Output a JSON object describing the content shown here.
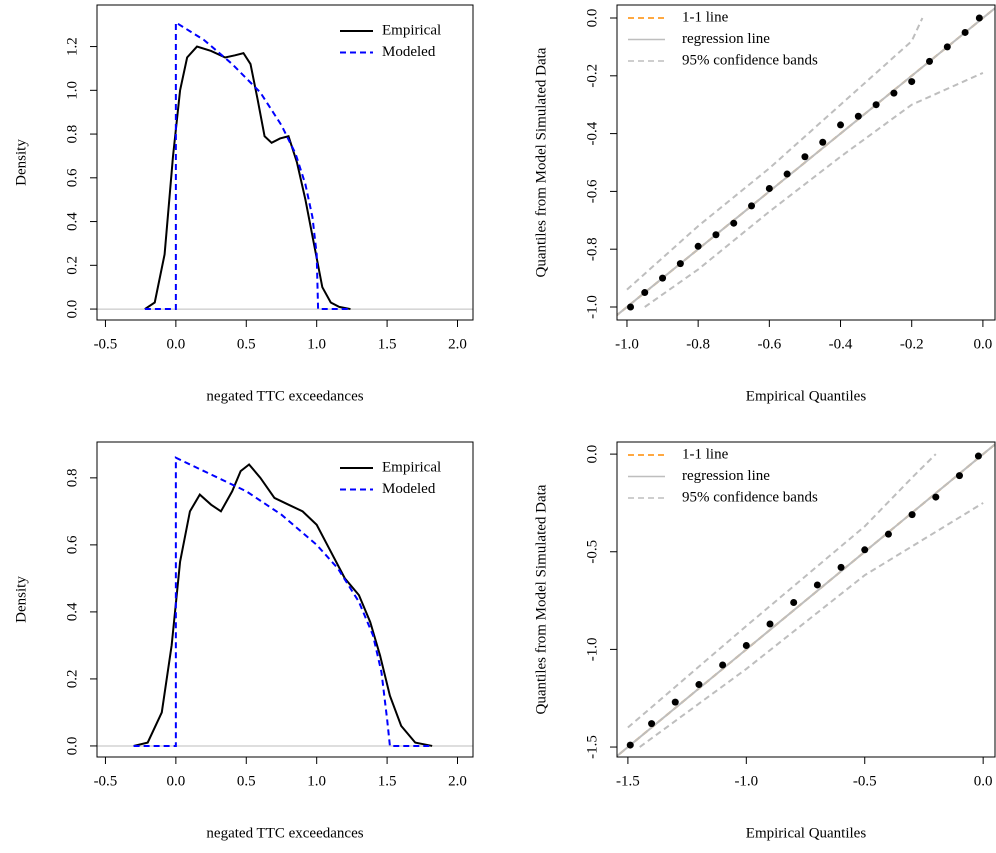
{
  "chart_data": [
    {
      "type": "density",
      "xlabel": "negated TTC exceedances",
      "ylabel": "Density",
      "xlim": [
        -0.56,
        2.11
      ],
      "ylim": [
        -0.05,
        1.39
      ],
      "xticks": [
        -0.5,
        {
          "value": 0,
          "label": "0.0"
        },
        0.5,
        {
          "value": 1,
          "label": "1.0"
        },
        1.5,
        {
          "value": 2,
          "label": "2.0"
        }
      ],
      "yticks": [
        {
          "value": 0,
          "label": "0.0"
        },
        0.2,
        0.4,
        0.6,
        0.8,
        {
          "value": 1,
          "label": "1.0"
        },
        1.2
      ],
      "hline": 0,
      "hline_color": "#bebebe",
      "legend": "top-right",
      "series": [
        {
          "name": "Empirical",
          "color": "#000000",
          "line_style": "solid",
          "x": [
            -0.22,
            -0.15,
            -0.08,
            -0.02,
            0.03,
            0.08,
            0.15,
            0.25,
            0.35,
            0.42,
            0.48,
            0.53,
            0.58,
            0.63,
            0.68,
            0.74,
            0.8,
            0.86,
            0.92,
            0.98,
            1.04,
            1.1,
            1.16,
            1.24
          ],
          "values": [
            0,
            0.03,
            0.25,
            0.7,
            1.0,
            1.15,
            1.2,
            1.18,
            1.15,
            1.16,
            1.17,
            1.12,
            0.96,
            0.79,
            0.76,
            0.78,
            0.79,
            0.67,
            0.5,
            0.3,
            0.1,
            0.03,
            0.01,
            0
          ]
        },
        {
          "name": "Modeled",
          "color": "#0000ff",
          "line_style": "dashed",
          "x": [
            -0.22,
            0,
            0,
            0.2,
            0.4,
            0.6,
            0.75,
            0.85,
            0.92,
            0.97,
            1.0,
            1.01,
            1.24
          ],
          "values": [
            0,
            0,
            1.31,
            1.23,
            1.12,
            0.99,
            0.84,
            0.71,
            0.57,
            0.42,
            0.25,
            0,
            0
          ]
        }
      ]
    },
    {
      "type": "qq",
      "xlabel": "Empirical Quantiles",
      "ylabel": "Quantiles from Model Simulated Data",
      "xlim": [
        -1.028,
        0.034
      ],
      "ylim": [
        -1.045,
        0.045
      ],
      "xticks": [
        {
          "value": -1,
          "label": "-1.0"
        },
        -0.8,
        -0.6,
        -0.4,
        -0.2,
        {
          "value": 0,
          "label": "0.0"
        }
      ],
      "yticks": [
        {
          "value": -1,
          "label": "-1.0"
        },
        -0.8,
        -0.6,
        -0.4,
        -0.2,
        {
          "value": 0,
          "label": "0.0"
        }
      ],
      "legend": "top-left",
      "points": {
        "color": "#000000",
        "x": [
          -0.99,
          -0.95,
          -0.9,
          -0.85,
          -0.8,
          -0.75,
          -0.7,
          -0.65,
          -0.6,
          -0.55,
          -0.5,
          -0.45,
          -0.4,
          -0.35,
          -0.3,
          -0.25,
          -0.2,
          -0.15,
          -0.1,
          -0.05,
          -0.01
        ],
        "y": [
          -1.0,
          -0.95,
          -0.9,
          -0.85,
          -0.79,
          -0.75,
          -0.71,
          -0.65,
          -0.59,
          -0.54,
          -0.48,
          -0.43,
          -0.37,
          -0.34,
          -0.3,
          -0.26,
          -0.22,
          -0.15,
          -0.1,
          -0.05,
          0.0
        ]
      },
      "series": [
        {
          "name": "1-1 line",
          "color": "#ff8c00",
          "line_style": "dashed",
          "x": [
            -1.1,
            0.1
          ],
          "values": [
            -1.1,
            0.1
          ]
        },
        {
          "name": "regression line",
          "color": "#bebebe",
          "line_style": "solid",
          "x": [
            -1.1,
            0.1
          ],
          "values": [
            -1.1,
            0.1
          ]
        },
        {
          "name": "95% confidence bands",
          "color": "#bebebe",
          "line_style": "dashed",
          "upper": {
            "x": [
              -1.0,
              -0.8,
              -0.6,
              -0.4,
              -0.2,
              -0.17
            ],
            "y": [
              -0.94,
              -0.72,
              -0.52,
              -0.3,
              -0.08,
              0.0
            ]
          },
          "lower": {
            "x": [
              -0.95,
              -0.8,
              -0.6,
              -0.4,
              -0.2,
              0.0
            ],
            "y": [
              -1.0,
              -0.87,
              -0.67,
              -0.48,
              -0.3,
              -0.19
            ]
          }
        }
      ]
    },
    {
      "type": "density",
      "xlabel": "negated TTC exceedances",
      "ylabel": "Density",
      "xlim": [
        -0.56,
        2.11
      ],
      "ylim": [
        -0.033,
        0.907
      ],
      "xticks": [
        -0.5,
        {
          "value": 0,
          "label": "0.0"
        },
        0.5,
        {
          "value": 1,
          "label": "1.0"
        },
        1.5,
        {
          "value": 2,
          "label": "2.0"
        }
      ],
      "yticks": [
        {
          "value": 0,
          "label": "0.0"
        },
        0.2,
        0.4,
        0.6,
        0.8
      ],
      "hline": 0,
      "hline_color": "#bebebe",
      "legend": "top-right",
      "series": [
        {
          "name": "Empirical",
          "color": "#000000",
          "line_style": "solid",
          "x": [
            -0.3,
            -0.2,
            -0.1,
            -0.03,
            0.03,
            0.1,
            0.17,
            0.25,
            0.32,
            0.4,
            0.46,
            0.52,
            0.6,
            0.7,
            0.8,
            0.9,
            1.0,
            1.1,
            1.2,
            1.3,
            1.38,
            1.45,
            1.52,
            1.6,
            1.7,
            1.82
          ],
          "values": [
            0,
            0.01,
            0.1,
            0.3,
            0.55,
            0.7,
            0.75,
            0.72,
            0.7,
            0.76,
            0.82,
            0.84,
            0.8,
            0.74,
            0.72,
            0.7,
            0.66,
            0.58,
            0.5,
            0.45,
            0.37,
            0.27,
            0.15,
            0.06,
            0.01,
            0
          ]
        },
        {
          "name": "Modeled",
          "color": "#0000ff",
          "line_style": "dashed",
          "x": [
            -0.3,
            0,
            0,
            0.25,
            0.5,
            0.75,
            1.0,
            1.15,
            1.3,
            1.4,
            1.46,
            1.5,
            1.52,
            1.82
          ],
          "values": [
            0,
            0,
            0.86,
            0.81,
            0.76,
            0.69,
            0.6,
            0.53,
            0.43,
            0.33,
            0.22,
            0.08,
            0,
            0
          ]
        }
      ]
    },
    {
      "type": "qq",
      "xlabel": "Empirical Quantiles",
      "ylabel": "Quantiles from Model Simulated Data",
      "xlim": [
        -1.546,
        0.05
      ],
      "ylim": [
        -1.551,
        0.062
      ],
      "xticks": [
        -1.5,
        {
          "value": -1,
          "label": "-1.0"
        },
        -0.5,
        {
          "value": 0,
          "label": "0.0"
        }
      ],
      "yticks": [
        -1.5,
        {
          "value": -1,
          "label": "-1.0"
        },
        -0.5,
        {
          "value": 0,
          "label": "0.0"
        }
      ],
      "legend": "top-left",
      "points": {
        "color": "#000000",
        "x": [
          -1.49,
          -1.4,
          -1.3,
          -1.2,
          -1.1,
          -1.0,
          -0.9,
          -0.8,
          -0.7,
          -0.6,
          -0.5,
          -0.4,
          -0.3,
          -0.2,
          -0.1,
          -0.02
        ],
        "y": [
          -1.49,
          -1.38,
          -1.27,
          -1.18,
          -1.08,
          -0.98,
          -0.87,
          -0.76,
          -0.67,
          -0.58,
          -0.49,
          -0.41,
          -0.31,
          -0.22,
          -0.11,
          -0.01
        ]
      },
      "series": [
        {
          "name": "1-1 line",
          "color": "#ff8c00",
          "line_style": "dashed",
          "x": [
            -1.6,
            0.1
          ],
          "values": [
            -1.6,
            0.1
          ]
        },
        {
          "name": "regression line",
          "color": "#bebebe",
          "line_style": "solid",
          "x": [
            -1.6,
            0.1
          ],
          "values": [
            -1.6,
            0.1
          ]
        },
        {
          "name": "95% confidence bands",
          "color": "#bebebe",
          "line_style": "dashed",
          "upper": {
            "x": [
              -1.5,
              -1.0,
              -0.5,
              -0.3,
              -0.2
            ],
            "y": [
              -1.4,
              -0.88,
              -0.37,
              -0.12,
              0.0
            ]
          },
          "lower": {
            "x": [
              -1.45,
              -1.0,
              -0.5,
              0.0
            ],
            "y": [
              -1.5,
              -1.1,
              -0.62,
              -0.25
            ]
          }
        }
      ]
    }
  ]
}
